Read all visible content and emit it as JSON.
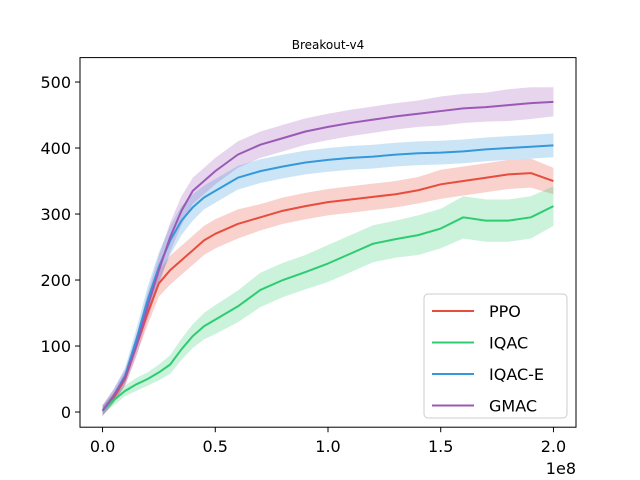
{
  "chart_data": {
    "type": "line",
    "title": "Breakout-v4",
    "xlabel": "",
    "ylabel": "",
    "x_multiplier_label": "1e8",
    "xlim": [
      -0.1,
      2.1
    ],
    "ylim": [
      -23,
      537
    ],
    "x_ticks": [
      0.0,
      0.5,
      1.0,
      1.5,
      2.0
    ],
    "x_tick_labels": [
      "0.0",
      "0.5",
      "1.0",
      "1.5",
      "2.0"
    ],
    "y_ticks": [
      0,
      100,
      200,
      300,
      400,
      500
    ],
    "y_tick_labels": [
      "0",
      "100",
      "200",
      "300",
      "400",
      "500"
    ],
    "grid": false,
    "legend_position": "lower-right",
    "series": [
      {
        "name": "PPO",
        "color": "#e74c3c",
        "x": [
          0.0,
          0.05,
          0.1,
          0.15,
          0.2,
          0.25,
          0.3,
          0.35,
          0.4,
          0.45,
          0.5,
          0.6,
          0.7,
          0.8,
          0.9,
          1.0,
          1.1,
          1.2,
          1.3,
          1.4,
          1.5,
          1.6,
          1.7,
          1.8,
          1.9,
          2.0
        ],
        "values": [
          2,
          22,
          50,
          100,
          150,
          195,
          215,
          230,
          245,
          260,
          270,
          285,
          295,
          305,
          312,
          318,
          322,
          326,
          330,
          336,
          345,
          350,
          355,
          360,
          362,
          350
        ],
        "band": [
          8,
          8,
          10,
          14,
          18,
          20,
          22,
          22,
          22,
          22,
          22,
          22,
          20,
          20,
          20,
          20,
          20,
          20,
          20,
          20,
          22,
          22,
          22,
          22,
          22,
          20
        ]
      },
      {
        "name": "IQAC",
        "color": "#2ecc71",
        "x": [
          0.0,
          0.05,
          0.1,
          0.15,
          0.2,
          0.25,
          0.3,
          0.35,
          0.4,
          0.45,
          0.5,
          0.6,
          0.7,
          0.8,
          0.9,
          1.0,
          1.1,
          1.2,
          1.3,
          1.4,
          1.5,
          1.6,
          1.7,
          1.8,
          1.9,
          2.0
        ],
        "values": [
          2,
          18,
          32,
          42,
          50,
          60,
          72,
          95,
          115,
          130,
          140,
          160,
          185,
          200,
          212,
          225,
          240,
          255,
          262,
          268,
          278,
          295,
          290,
          290,
          295,
          312
        ],
        "band": [
          6,
          8,
          8,
          10,
          10,
          12,
          14,
          16,
          18,
          20,
          22,
          24,
          26,
          26,
          26,
          28,
          28,
          28,
          28,
          30,
          30,
          32,
          32,
          32,
          32,
          30
        ]
      },
      {
        "name": "IQAC-E",
        "color": "#3498db",
        "x": [
          0.0,
          0.05,
          0.1,
          0.15,
          0.2,
          0.25,
          0.3,
          0.35,
          0.4,
          0.45,
          0.5,
          0.6,
          0.7,
          0.8,
          0.9,
          1.0,
          1.1,
          1.2,
          1.3,
          1.4,
          1.5,
          1.6,
          1.7,
          1.8,
          1.9,
          2.0
        ],
        "values": [
          2,
          25,
          55,
          110,
          170,
          220,
          260,
          290,
          310,
          325,
          335,
          355,
          365,
          372,
          378,
          382,
          385,
          387,
          390,
          392,
          393,
          395,
          398,
          400,
          402,
          404
        ],
        "band": [
          8,
          10,
          12,
          16,
          20,
          22,
          22,
          22,
          20,
          18,
          18,
          18,
          18,
          18,
          18,
          18,
          18,
          18,
          18,
          18,
          18,
          18,
          18,
          18,
          18,
          18
        ]
      },
      {
        "name": "GMAC",
        "color": "#9b59b6",
        "x": [
          0.0,
          0.05,
          0.1,
          0.15,
          0.2,
          0.25,
          0.3,
          0.35,
          0.4,
          0.45,
          0.5,
          0.6,
          0.7,
          0.8,
          0.9,
          1.0,
          1.1,
          1.2,
          1.3,
          1.4,
          1.5,
          1.6,
          1.7,
          1.8,
          1.9,
          2.0
        ],
        "values": [
          2,
          25,
          52,
          100,
          160,
          215,
          265,
          305,
          335,
          350,
          365,
          390,
          405,
          415,
          425,
          432,
          438,
          443,
          448,
          452,
          456,
          460,
          462,
          465,
          468,
          470
        ],
        "band": [
          8,
          10,
          12,
          16,
          20,
          22,
          22,
          22,
          20,
          20,
          20,
          20,
          20,
          20,
          20,
          20,
          20,
          20,
          20,
          20,
          22,
          22,
          22,
          24,
          24,
          22
        ]
      }
    ]
  }
}
